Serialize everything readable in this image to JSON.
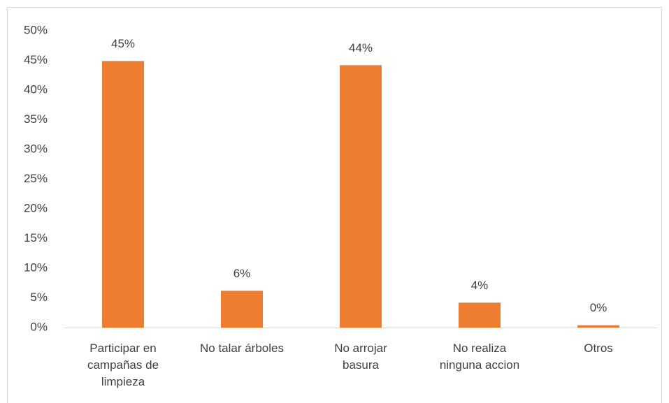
{
  "chart_data": {
    "type": "bar",
    "categories": [
      "Participar en\ncampañas de\nlimpieza",
      "No talar árboles",
      "No arrojar\nbasura",
      "No realiza\nninguna accion",
      "Otros"
    ],
    "values": [
      44.9,
      6.2,
      44.2,
      4.2,
      0.4
    ],
    "value_labels": [
      "45%",
      "6%",
      "44%",
      "4%",
      "0%"
    ],
    "color": "#ed7d31",
    "ylim": [
      0,
      50
    ],
    "yticks": [
      {
        "value": 0,
        "label": "0%"
      },
      {
        "value": 5,
        "label": "5%"
      },
      {
        "value": 10,
        "label": "10%"
      },
      {
        "value": 15,
        "label": "15%"
      },
      {
        "value": 20,
        "label": "20%"
      },
      {
        "value": 25,
        "label": "25%"
      },
      {
        "value": 30,
        "label": "30%"
      },
      {
        "value": 35,
        "label": "35%"
      },
      {
        "value": 40,
        "label": "40%"
      },
      {
        "value": 45,
        "label": "45%"
      },
      {
        "value": 50,
        "label": "50%"
      }
    ],
    "grid": false
  }
}
